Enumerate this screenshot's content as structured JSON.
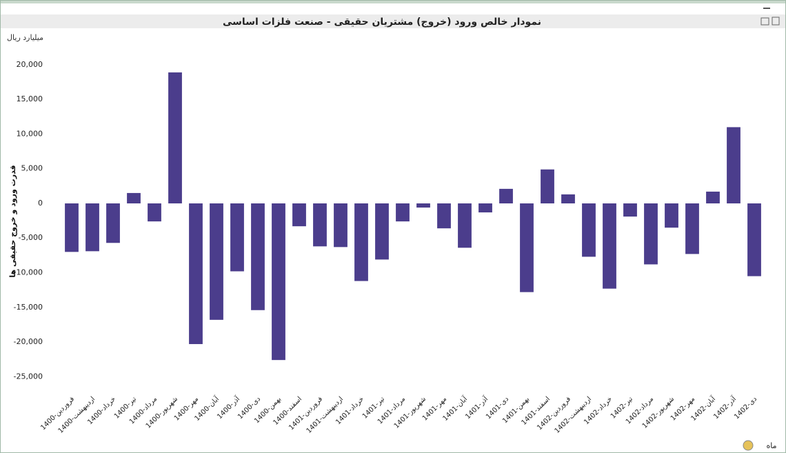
{
  "chart_data": {
    "type": "bar",
    "title": "نمودار خالص ورود (خروج) مشتریان حقیقی - صنعت فلزات اساسی",
    "unit_label": "میلیارد ریال",
    "y_label": "قدرت ورود و خروج حقیقی ها",
    "x_label": "ماه",
    "categories": [
      "1400-فروردین",
      "1400-اردیبهشت",
      "1400-خرداد",
      "1400-تیر",
      "1400-مرداد",
      "1400-شهریور",
      "1400-مهر",
      "1400-آبان",
      "1400-آذر",
      "1400-دی",
      "1400-بهمن",
      "1400-اسفند",
      "1401-فروردین",
      "1401-اردیبهشت",
      "1401-خرداد",
      "1401-تیر",
      "1401-مرداد",
      "1401-شهریور",
      "1401-مهر",
      "1401-آبان",
      "1401-آذر",
      "1401-دی",
      "1401-بهمن",
      "1401-اسفند",
      "1402-فروردین",
      "1402-اردیبهشت",
      "1402-خرداد",
      "1402-تیر",
      "1402-مرداد",
      "1402-شهریور",
      "1402-مهر",
      "1402-آبان",
      "1402-آذر",
      "1402-دی"
    ],
    "values": [
      -7000,
      -6900,
      -5700,
      1500,
      -2600,
      18900,
      -20300,
      -16800,
      -9800,
      -15400,
      -22600,
      -3300,
      -6200,
      -6300,
      -11200,
      -8100,
      -2600,
      -600,
      -3600,
      -6400,
      -1300,
      2100,
      -12800,
      4900,
      1300,
      -7700,
      -12300,
      -1900,
      -8800,
      -3500,
      -7300,
      1700,
      11000,
      -10500
    ],
    "color": "#4b3d8c",
    "ylim": [
      -27460,
      23280
    ],
    "yticks": [
      {
        "value": 20000,
        "label": "20,000"
      },
      {
        "value": 15000,
        "label": "15,000"
      },
      {
        "value": 10000,
        "label": "10,000"
      },
      {
        "value": 5000,
        "label": "5,000"
      },
      0,
      {
        "value": -5000,
        "label": "-5,000"
      },
      {
        "value": -10000,
        "label": "-10,000"
      },
      {
        "value": -15000,
        "label": "-15,000"
      },
      {
        "value": -20000,
        "label": "-20,000"
      },
      {
        "value": -25000,
        "label": "-25,000"
      }
    ],
    "grid": false
  }
}
